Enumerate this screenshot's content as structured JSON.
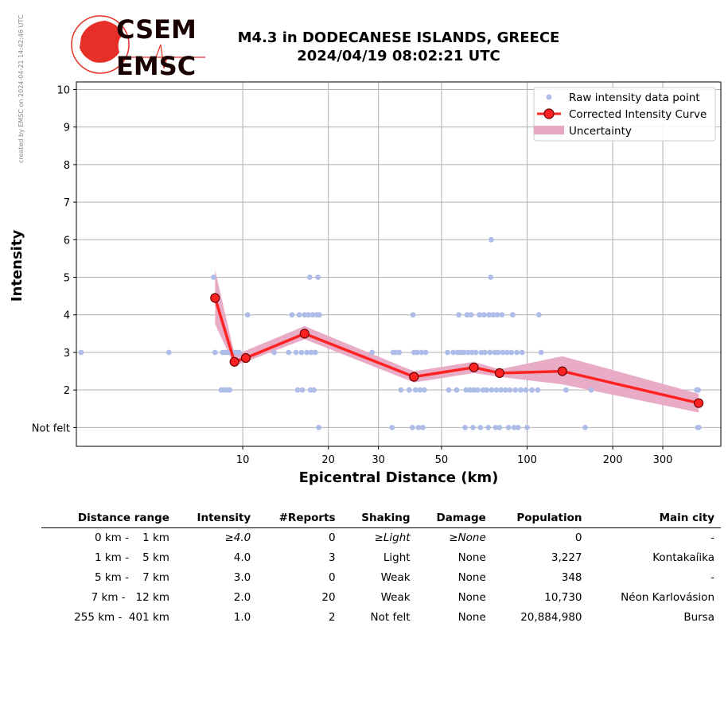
{
  "credit": "created by EMSC on 2024-04-21 14:42:46 UTC",
  "logo": {
    "line1": "CSEM",
    "line2": "EMSC"
  },
  "title_line1": "M4.3 in DODECANESE ISLANDS, GREECE",
  "title_line2": "2024/04/19 08:02:21 UTC",
  "colors": {
    "raw": "#aebde8",
    "curve": "#ff2222",
    "band": "#e8a8c4",
    "marker_edge": "#6b0000",
    "logo_red": "#e63027"
  },
  "chart_data": {
    "type": "scatter",
    "xlabel": "Epicentral Distance (km)",
    "ylabel": "Intensity",
    "xscale": "log",
    "xlim": [
      2.6,
      480
    ],
    "ylim": [
      0.5,
      10.2
    ],
    "x_ticks": [
      10,
      20,
      30,
      50,
      100,
      200,
      300
    ],
    "x_tick_labels": [
      "10",
      "20",
      "30",
      "50",
      "100",
      "200",
      "300"
    ],
    "y_ticks": [
      1,
      2,
      3,
      4,
      5,
      6,
      7,
      8,
      9,
      10
    ],
    "y_tick_labels": [
      "Not felt",
      "2",
      "3",
      "4",
      "5",
      "6",
      "7",
      "8",
      "9",
      "10"
    ],
    "grid": true,
    "legend_position": "top-right",
    "legend": [
      "Raw intensity data point",
      "Corrected Intensity Curve",
      "Uncertainty"
    ],
    "raw_points": [
      [
        2.7,
        3
      ],
      [
        5.5,
        3
      ],
      [
        7.9,
        5
      ],
      [
        7.99,
        3
      ],
      [
        8.4,
        2
      ],
      [
        8.6,
        2
      ],
      [
        8.8,
        2
      ],
      [
        9.0,
        2
      ],
      [
        8.5,
        3
      ],
      [
        8.7,
        3
      ],
      [
        8.9,
        3
      ],
      [
        9.1,
        3
      ],
      [
        9.3,
        3
      ],
      [
        9.5,
        3
      ],
      [
        9.7,
        3
      ],
      [
        10.4,
        4
      ],
      [
        12.9,
        3
      ],
      [
        14.5,
        3
      ],
      [
        14.9,
        4
      ],
      [
        15.4,
        3
      ],
      [
        15.6,
        2
      ],
      [
        15.8,
        4
      ],
      [
        16.1,
        3
      ],
      [
        16.2,
        2
      ],
      [
        16.5,
        4
      ],
      [
        16.8,
        3
      ],
      [
        17.0,
        4
      ],
      [
        17.2,
        5
      ],
      [
        17.3,
        2
      ],
      [
        17.4,
        3
      ],
      [
        17.6,
        4
      ],
      [
        17.8,
        2
      ],
      [
        18.0,
        3
      ],
      [
        18.2,
        4
      ],
      [
        18.4,
        5
      ],
      [
        18.6,
        4
      ],
      [
        18.5,
        1
      ],
      [
        28.5,
        3
      ],
      [
        33.5,
        1
      ],
      [
        33.8,
        3
      ],
      [
        34.5,
        3
      ],
      [
        35.5,
        3
      ],
      [
        36.0,
        2
      ],
      [
        38.5,
        2
      ],
      [
        39.5,
        1
      ],
      [
        39.7,
        4
      ],
      [
        40.0,
        3
      ],
      [
        40.5,
        2
      ],
      [
        41.0,
        3
      ],
      [
        41.5,
        1
      ],
      [
        42.0,
        2
      ],
      [
        42.5,
        3
      ],
      [
        43.0,
        1
      ],
      [
        43.5,
        2
      ],
      [
        44.0,
        3
      ],
      [
        52.5,
        3
      ],
      [
        53.0,
        2
      ],
      [
        55.0,
        3
      ],
      [
        56.5,
        2
      ],
      [
        57.0,
        3
      ],
      [
        57.5,
        4
      ],
      [
        58.5,
        3
      ],
      [
        60.0,
        3
      ],
      [
        60.5,
        1
      ],
      [
        61.0,
        2
      ],
      [
        61.5,
        4
      ],
      [
        62.0,
        3
      ],
      [
        63.0,
        2
      ],
      [
        63.5,
        4
      ],
      [
        64.0,
        3
      ],
      [
        64.5,
        1
      ],
      [
        65.0,
        2
      ],
      [
        66.0,
        3
      ],
      [
        67.0,
        2
      ],
      [
        68.0,
        4
      ],
      [
        68.5,
        1
      ],
      [
        69.0,
        3
      ],
      [
        70.0,
        2
      ],
      [
        70.5,
        4
      ],
      [
        71.0,
        3
      ],
      [
        72.0,
        2
      ],
      [
        73.0,
        1
      ],
      [
        73.5,
        4
      ],
      [
        74.0,
        3
      ],
      [
        74.5,
        5
      ],
      [
        74.8,
        6
      ],
      [
        75.0,
        2
      ],
      [
        76.0,
        4
      ],
      [
        77.0,
        3
      ],
      [
        77.5,
        1
      ],
      [
        78.0,
        2
      ],
      [
        78.5,
        4
      ],
      [
        79.0,
        3
      ],
      [
        80.0,
        1
      ],
      [
        81.0,
        2
      ],
      [
        81.5,
        4
      ],
      [
        82.0,
        3
      ],
      [
        84.0,
        2
      ],
      [
        85.0,
        3
      ],
      [
        86.0,
        1
      ],
      [
        87.0,
        2
      ],
      [
        88.0,
        3
      ],
      [
        89.0,
        4
      ],
      [
        90.0,
        1
      ],
      [
        91.0,
        2
      ],
      [
        92.0,
        3
      ],
      [
        93.0,
        1
      ],
      [
        95.0,
        2
      ],
      [
        96.0,
        3
      ],
      [
        99.0,
        2
      ],
      [
        100.0,
        1
      ],
      [
        104.0,
        2
      ],
      [
        109.0,
        2
      ],
      [
        110.0,
        4
      ],
      [
        112.0,
        3
      ],
      [
        137.0,
        2
      ],
      [
        160.0,
        1
      ],
      [
        168.0,
        2
      ],
      [
        395.0,
        2
      ],
      [
        398.0,
        1
      ],
      [
        400.0,
        2
      ],
      [
        402.0,
        1
      ]
    ],
    "curve": {
      "x": [
        7.99,
        9.35,
        10.25,
        16.5,
        40.0,
        65.0,
        80.0,
        133.0,
        401.0
      ],
      "y": [
        4.45,
        2.75,
        2.85,
        3.5,
        2.35,
        2.6,
        2.45,
        2.5,
        1.65
      ]
    },
    "uncertainty": {
      "x": [
        7.99,
        9.35,
        10.25,
        16.5,
        40.0,
        65.0,
        80.0,
        133.0,
        401.0
      ],
      "lower": [
        3.75,
        2.65,
        2.75,
        3.35,
        2.2,
        2.45,
        2.35,
        2.15,
        1.4
      ],
      "upper": [
        5.2,
        2.95,
        3.05,
        3.7,
        2.5,
        2.75,
        2.55,
        2.9,
        1.9
      ]
    }
  },
  "table": {
    "headers": [
      "Distance range",
      "Intensity",
      "#Reports",
      "Shaking",
      "Damage",
      "Population",
      "Main city"
    ],
    "rows": [
      [
        "0 km -    1 km",
        "≥4.0",
        "0",
        "≥Light",
        "≥None",
        "0",
        "-"
      ],
      [
        "1 km -    5 km",
        "4.0",
        "3",
        "Light",
        "None",
        "3,227",
        "Kontakaíika"
      ],
      [
        "5 km -    7 km",
        "3.0",
        "0",
        "Weak",
        "None",
        "348",
        "-"
      ],
      [
        "7 km -   12 km",
        "2.0",
        "20",
        "Weak",
        "None",
        "10,730",
        "Néon Karlovásion"
      ],
      [
        "255 km -  401 km",
        "1.0",
        "2",
        "Not felt",
        "None",
        "20,884,980",
        "Bursa"
      ]
    ]
  }
}
